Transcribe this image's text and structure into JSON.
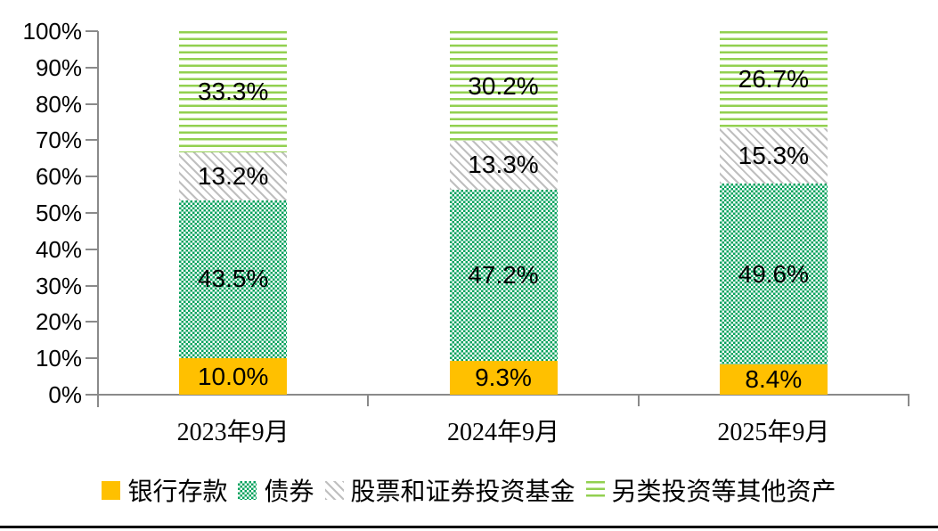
{
  "chart_data": {
    "type": "bar",
    "stacked": true,
    "title": "",
    "xlabel": "",
    "ylabel": "",
    "grid": false,
    "legend_position": "bottom",
    "categories": [
      "2023年9月",
      "2024年9月",
      "2025年9月"
    ],
    "series": [
      {
        "name": "银行存款",
        "pattern": "solid",
        "color": "#FFC000",
        "values": [
          10.0,
          9.3,
          8.4
        ],
        "labels": [
          "10.0%",
          "9.3%",
          "8.4%"
        ]
      },
      {
        "name": "债券",
        "pattern": "checker",
        "color": "#00A15C",
        "values": [
          43.5,
          47.2,
          49.6
        ],
        "labels": [
          "43.5%",
          "47.2%",
          "49.6%"
        ]
      },
      {
        "name": "股票和证券投资基金",
        "pattern": "diagonal",
        "color": "#BFBFBF",
        "values": [
          13.2,
          13.3,
          15.3
        ],
        "labels": [
          "13.2%",
          "13.3%",
          "15.3%"
        ]
      },
      {
        "name": "另类投资等其他资产",
        "pattern": "hlines",
        "color": "#92D050",
        "values": [
          33.3,
          30.2,
          26.7
        ],
        "labels": [
          "33.3%",
          "30.2%",
          "26.7%"
        ]
      }
    ],
    "y_axis": {
      "min": 0,
      "max": 100,
      "tick_step": 10,
      "ticks": [
        "0%",
        "10%",
        "20%",
        "30%",
        "40%",
        "50%",
        "60%",
        "70%",
        "80%",
        "90%",
        "100%"
      ]
    },
    "axis_color": "#8A8A8A",
    "label_color": "#000000"
  }
}
